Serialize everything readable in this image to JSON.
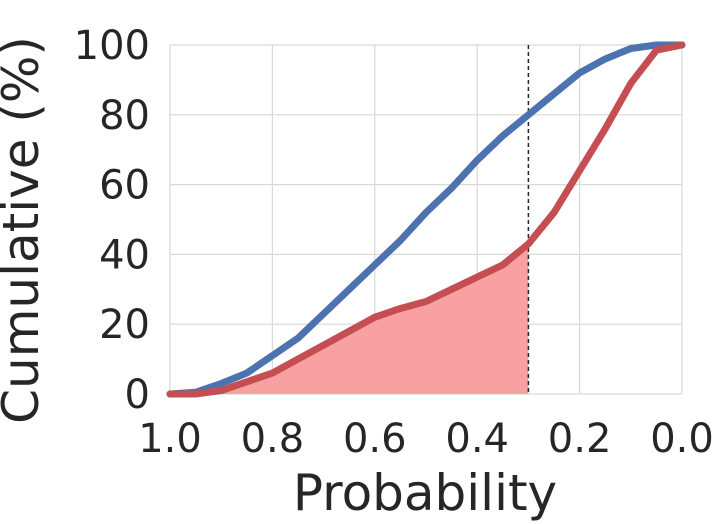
{
  "chart_data": {
    "type": "line",
    "xlabel": "Probability",
    "ylabel": "Cumulative (%)",
    "xlim": [
      1.0,
      0.0
    ],
    "ylim": [
      0,
      100
    ],
    "x_reversed": true,
    "grid": true,
    "xticks": [
      "1.0",
      "0.8",
      "0.6",
      "0.4",
      "0.2",
      "0.0"
    ],
    "yticks": [
      "0",
      "20",
      "40",
      "60",
      "80",
      "100"
    ],
    "xtick_values": [
      1.0,
      0.8,
      0.6,
      0.4,
      0.2,
      0.0
    ],
    "ytick_values": [
      0,
      20,
      40,
      60,
      80,
      100
    ],
    "threshold_x": 0.3,
    "series": [
      {
        "color": "#4c72b0",
        "x": [
          1.0,
          0.95,
          0.9,
          0.85,
          0.8,
          0.75,
          0.7,
          0.65,
          0.6,
          0.55,
          0.5,
          0.45,
          0.4,
          0.35,
          0.3,
          0.25,
          0.2,
          0.15,
          0.1,
          0.05,
          0.0
        ],
        "y": [
          0,
          0.5,
          3,
          6,
          11,
          16,
          23,
          30,
          37,
          44,
          52,
          59,
          67,
          74,
          80,
          86,
          92,
          96,
          99,
          100,
          100
        ]
      },
      {
        "color": "#c44e52",
        "x": [
          1.0,
          0.95,
          0.9,
          0.85,
          0.8,
          0.75,
          0.7,
          0.65,
          0.6,
          0.55,
          0.5,
          0.45,
          0.4,
          0.35,
          0.3,
          0.25,
          0.2,
          0.15,
          0.1,
          0.05,
          0.0
        ],
        "y": [
          0,
          0,
          1,
          3.5,
          6,
          10,
          14,
          18,
          22,
          24.5,
          26.5,
          30,
          33.5,
          37,
          43,
          52,
          64,
          76,
          89,
          98.5,
          100
        ],
        "fill_below_until_x": 0.3,
        "fill_color": "#f9a0a3"
      }
    ]
  }
}
